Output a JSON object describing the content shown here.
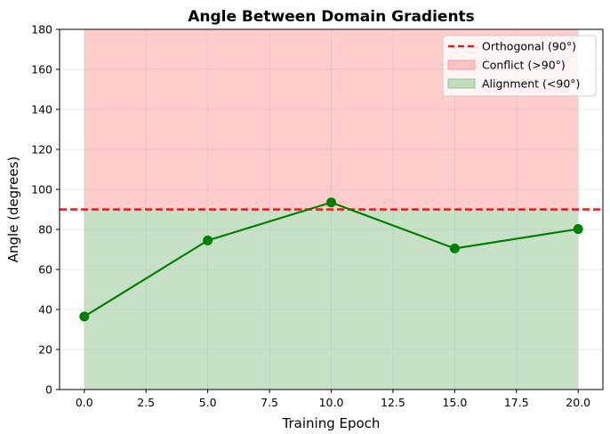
{
  "chart_data": {
    "type": "line",
    "title": "Angle Between Domain Gradients",
    "xlabel": "Training Epoch",
    "ylabel": "Angle (degrees)",
    "xlim": [
      -1,
      21
    ],
    "ylim": [
      0,
      180
    ],
    "xticks": [
      "0.0",
      "2.5",
      "5.0",
      "7.5",
      "10.0",
      "12.5",
      "15.0",
      "17.5",
      "20.0"
    ],
    "yticks": [
      "0",
      "20",
      "40",
      "60",
      "80",
      "100",
      "120",
      "140",
      "160",
      "180"
    ],
    "x": [
      0,
      5,
      10,
      15,
      20
    ],
    "series": [
      {
        "values": [
          36.5,
          74.5,
          93.5,
          70.5,
          80.2
        ],
        "color": "#008000"
      }
    ],
    "reference_line": {
      "y": 90,
      "label": "Orthogonal (90°)",
      "color": "#e41a1c",
      "style": "dashed"
    },
    "regions": [
      {
        "label": "Conflict (>90°)",
        "from": 90,
        "to": 180,
        "x_from": 0,
        "x_to": 20,
        "color": "#ff9999"
      },
      {
        "label": "Alignment (<90°)",
        "from": 0,
        "to": 90,
        "x_from": 0,
        "x_to": 20,
        "color": "#8fc48f"
      }
    ],
    "grid": true,
    "legend_position": "top-right"
  }
}
